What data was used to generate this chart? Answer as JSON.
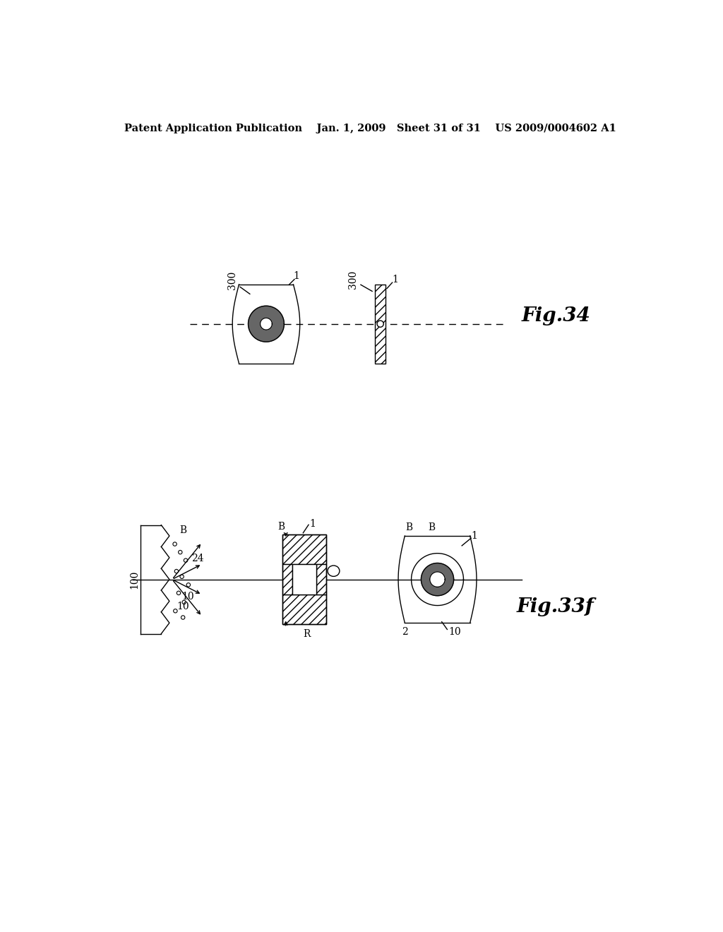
{
  "bg_color": "#ffffff",
  "line_color": "#000000",
  "header_text": "Patent Application Publication    Jan. 1, 2009   Sheet 31 of 31    US 2009/0004602 A1",
  "fig34_label": "Fig.34",
  "fig33f_label": "Fig.33f",
  "header_fontsize": 10.5,
  "fig_label_fontsize": 20,
  "annot_fontsize": 10
}
